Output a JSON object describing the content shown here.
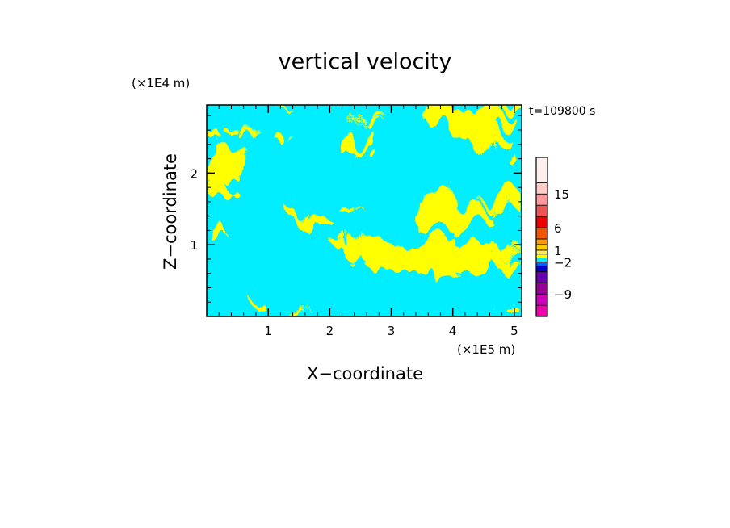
{
  "chart_data": {
    "type": "heatmap",
    "title": "vertical velocity",
    "xlabel": "X−coordinate",
    "ylabel": "Z−coordinate",
    "x_unit_label": "(×1E5 m)",
    "y_unit_label": "(×1E4 m)",
    "time_label": "t=109800 s",
    "x_ticks": [
      {
        "value": 1,
        "label": "1"
      },
      {
        "value": 2,
        "label": "2"
      },
      {
        "value": 3,
        "label": "3"
      },
      {
        "value": 4,
        "label": "4"
      },
      {
        "value": 5,
        "label": "5"
      }
    ],
    "y_ticks": [
      {
        "value": 1,
        "label": "1"
      },
      {
        "value": 2,
        "label": "2"
      }
    ],
    "xlim": [
      0,
      5.12
    ],
    "ylim": [
      0,
      2.95
    ],
    "x_minor_step": 0.2,
    "y_minor_step": 0.2,
    "field_colors": {
      "positive": "#ffff00",
      "negative": "#00eeff"
    },
    "colorbar": {
      "colors": [
        "#ee00aa",
        "#cc00bb",
        "#990099",
        "#6600aa",
        "#0000cc",
        "#0066ff",
        "#00eeff",
        "#ffff00",
        "#ffee44",
        "#ffcc00",
        "#ff9900",
        "#ee5500",
        "#ee0000",
        "#ee5555",
        "#ff9999",
        "#ffcccc",
        "#ffeeee"
      ],
      "bands": [
        {
          "color": "#ee00aa",
          "weight": 2
        },
        {
          "color": "#cc00bb",
          "weight": 2
        },
        {
          "color": "#990099",
          "weight": 2
        },
        {
          "color": "#6600aa",
          "weight": 2
        },
        {
          "color": "#0000cc",
          "weight": 1
        },
        {
          "color": "#0066ff",
          "weight": 0.7
        },
        {
          "color": "#00eeff",
          "weight": 0.7
        },
        {
          "color": "#ffff00",
          "weight": 0.7
        },
        {
          "color": "#ffee44",
          "weight": 0.7
        },
        {
          "color": "#ffcc00",
          "weight": 1
        },
        {
          "color": "#ff9900",
          "weight": 1
        },
        {
          "color": "#ee5500",
          "weight": 2
        },
        {
          "color": "#ee0000",
          "weight": 2
        },
        {
          "color": "#ee5555",
          "weight": 2
        },
        {
          "color": "#ff9999",
          "weight": 2
        },
        {
          "color": "#ffcccc",
          "weight": 2
        },
        {
          "color": "#ffeeee",
          "weight": 4.5
        }
      ],
      "labels": [
        {
          "text": "15",
          "after_band": 14
        },
        {
          "text": "6",
          "after_band": 11
        },
        {
          "text": "1",
          "after_band": 8
        },
        {
          "text": "−2",
          "after_band": 5
        },
        {
          "text": "−9",
          "after_band": 1
        }
      ]
    }
  }
}
